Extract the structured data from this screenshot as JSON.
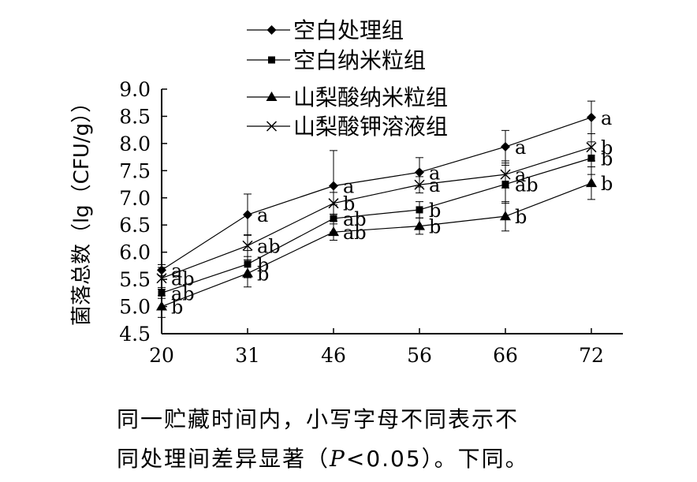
{
  "chart_data": {
    "type": "line",
    "xlabel": "",
    "ylabel": "菌落总数（lg（CFU/g））",
    "categories": [
      "20",
      "31",
      "46",
      "56",
      "66",
      "72"
    ],
    "ylim": [
      4.5,
      9.0
    ],
    "yticks": [
      "4.5",
      "5.0",
      "5.5",
      "6.0",
      "6.5",
      "7.0",
      "7.5",
      "8.0",
      "8.5",
      "9.0"
    ],
    "legend_position": "top",
    "series": [
      {
        "name": "空白处理组",
        "marker": "diamond",
        "values": [
          5.67,
          6.69,
          7.22,
          7.47,
          7.94,
          8.48
        ],
        "errors": [
          0.1,
          0.38,
          0.65,
          0.27,
          0.3,
          0.3
        ],
        "labels": [
          "a",
          "a",
          "a",
          "a",
          "a",
          "a"
        ]
      },
      {
        "name": "空白纳米粒组",
        "marker": "square",
        "values": [
          5.25,
          5.78,
          6.62,
          6.78,
          7.25,
          7.73
        ],
        "errors": [
          0.1,
          0.25,
          0.25,
          0.15,
          0.35,
          0.3
        ],
        "labels": [
          "ab",
          "b",
          "ab",
          "b",
          "ab",
          "b"
        ]
      },
      {
        "name": "山梨酸纳米粒组",
        "marker": "triangle",
        "values": [
          5.0,
          5.61,
          6.37,
          6.48,
          6.66,
          7.27
        ],
        "errors": [
          0.2,
          0.25,
          0.15,
          0.15,
          0.27,
          0.3
        ],
        "labels": [
          "b",
          "b",
          "ab",
          "b",
          "b",
          "b"
        ]
      },
      {
        "name": "山梨酸钾溶液组",
        "marker": "x",
        "values": [
          5.52,
          6.12,
          6.9,
          7.24,
          7.43,
          7.93
        ],
        "errors": [
          0.2,
          0.2,
          0.2,
          0.15,
          0.25,
          0.25
        ],
        "labels": [
          "ab",
          "ab",
          "b",
          "a",
          "a",
          "b"
        ]
      }
    ]
  },
  "caption": {
    "line1": "同一贮藏时间内，小写字母不同表示不",
    "line2_before": "同处理间差异显著（",
    "line2_italic": "P",
    "line2_after": "<0.05）。下同。"
  }
}
